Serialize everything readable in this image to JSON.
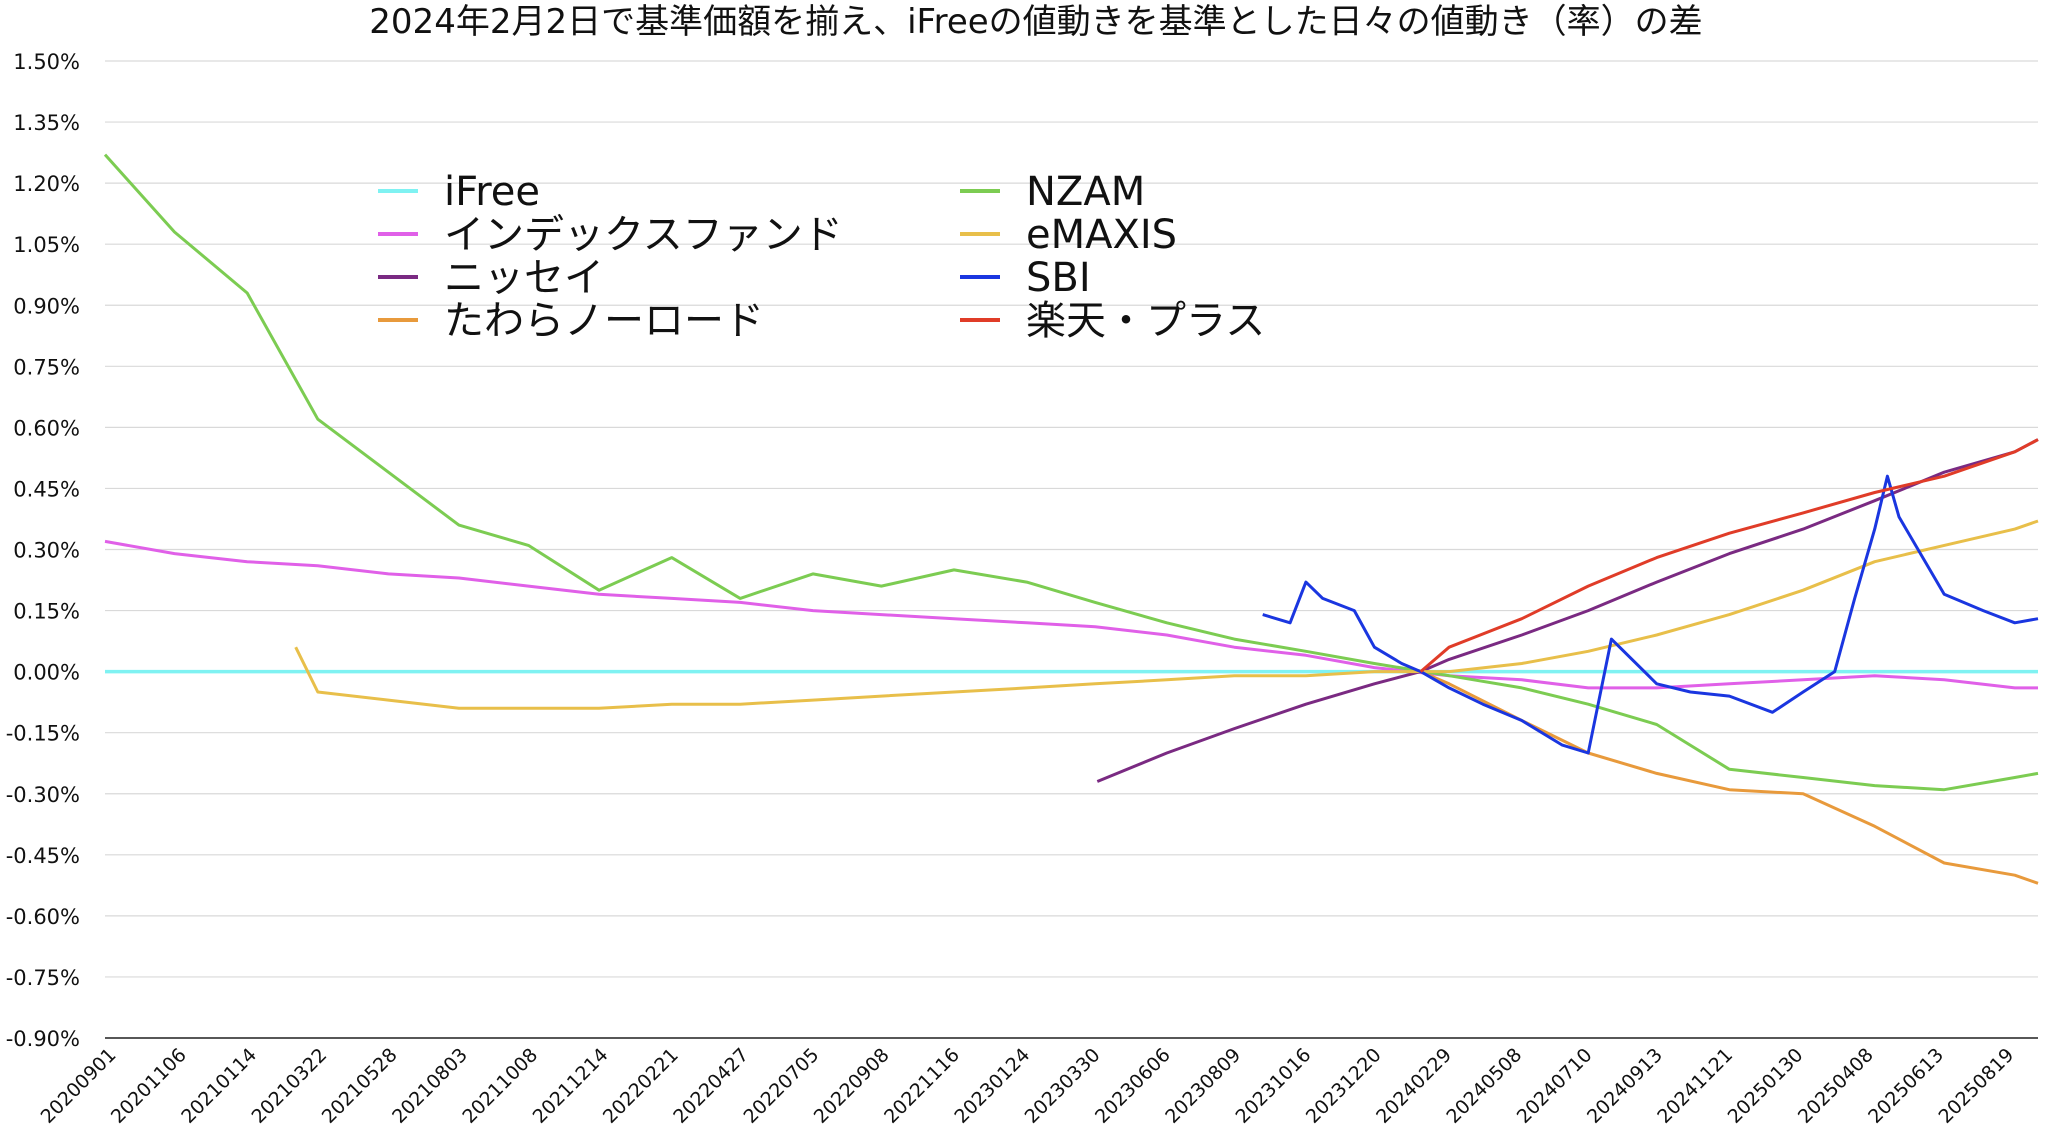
{
  "chart_data": {
    "type": "line",
    "title": "2024年2月2日で基準価額を揃え、iFreeの値動きを基準とした日々の値動き（率）の差",
    "xlabel": "",
    "ylabel": "",
    "ylim": [
      -0.9,
      1.5
    ],
    "grid": true,
    "legend_placement": "top-left",
    "y_ticks": [
      "1.50%",
      "1.35%",
      "1.20%",
      "1.05%",
      "0.90%",
      "0.75%",
      "0.60%",
      "0.45%",
      "0.30%",
      "0.15%",
      "0.00%",
      "-0.15%",
      "-0.30%",
      "-0.45%",
      "-0.60%",
      "-0.75%",
      "-0.90%"
    ],
    "y_tick_values": [
      1.5,
      1.35,
      1.2,
      1.05,
      0.9,
      0.75,
      0.6,
      0.45,
      0.3,
      0.15,
      0.0,
      -0.15,
      -0.3,
      -0.45,
      -0.6,
      -0.75,
      -0.9
    ],
    "x_ticks": [
      "20200901",
      "20201106",
      "20210114",
      "20210322",
      "20210528",
      "20210803",
      "20211008",
      "20211214",
      "20220221",
      "20220427",
      "20220705",
      "20220908",
      "20221116",
      "20230124",
      "20230330",
      "20230606",
      "20230809",
      "20231016",
      "20231220",
      "20240229",
      "20240508",
      "20240710",
      "20240913",
      "20241121",
      "20250130",
      "20250408",
      "20250613",
      "20250819"
    ],
    "x_range": [
      "20200901",
      "20250910"
    ],
    "series": [
      {
        "name": "iFree",
        "color": "#7ff2f2",
        "points": [
          [
            "20200901",
            0.0
          ],
          [
            "20250910",
            0.0
          ]
        ]
      },
      {
        "name": "インデックスファンド",
        "color": "#e060e8",
        "points": [
          [
            "20200901",
            0.32
          ],
          [
            "20201106",
            0.29
          ],
          [
            "20210114",
            0.27
          ],
          [
            "20210322",
            0.26
          ],
          [
            "20210528",
            0.24
          ],
          [
            "20210803",
            0.23
          ],
          [
            "20211008",
            0.21
          ],
          [
            "20211214",
            0.19
          ],
          [
            "20220221",
            0.18
          ],
          [
            "20220427",
            0.17
          ],
          [
            "20220705",
            0.15
          ],
          [
            "20220908",
            0.14
          ],
          [
            "20221116",
            0.13
          ],
          [
            "20230124",
            0.12
          ],
          [
            "20230330",
            0.11
          ],
          [
            "20230606",
            0.09
          ],
          [
            "20230809",
            0.06
          ],
          [
            "20231016",
            0.04
          ],
          [
            "20231220",
            0.01
          ],
          [
            "20240229",
            -0.01
          ],
          [
            "20240508",
            -0.02
          ],
          [
            "20240710",
            -0.04
          ],
          [
            "20240913",
            -0.04
          ],
          [
            "20241121",
            -0.03
          ],
          [
            "20250130",
            -0.02
          ],
          [
            "20250408",
            -0.01
          ],
          [
            "20250613",
            -0.02
          ],
          [
            "20250819",
            -0.04
          ],
          [
            "20250910",
            -0.04
          ]
        ]
      },
      {
        "name": "ニッセイ",
        "color": "#7a2a82",
        "points": [
          [
            "20230401",
            -0.27
          ],
          [
            "20230606",
            -0.2
          ],
          [
            "20230809",
            -0.14
          ],
          [
            "20231016",
            -0.08
          ],
          [
            "20231220",
            -0.03
          ],
          [
            "20240202",
            0.0
          ],
          [
            "20240229",
            0.03
          ],
          [
            "20240508",
            0.09
          ],
          [
            "20240710",
            0.15
          ],
          [
            "20240913",
            0.22
          ],
          [
            "20241121",
            0.29
          ],
          [
            "20250130",
            0.35
          ],
          [
            "20250408",
            0.42
          ],
          [
            "20250613",
            0.49
          ],
          [
            "20250819",
            0.54
          ],
          [
            "20250910",
            0.57
          ]
        ]
      },
      {
        "name": "たわらノーロード",
        "color": "#e89a3c",
        "points": [
          [
            "20240202",
            0.0
          ],
          [
            "20240229",
            -0.03
          ],
          [
            "20240508",
            -0.12
          ],
          [
            "20240710",
            -0.2
          ],
          [
            "20240913",
            -0.25
          ],
          [
            "20241121",
            -0.29
          ],
          [
            "20250130",
            -0.3
          ],
          [
            "20250408",
            -0.38
          ],
          [
            "20250613",
            -0.47
          ],
          [
            "20250819",
            -0.5
          ],
          [
            "20250910",
            -0.52
          ]
        ]
      },
      {
        "name": "NZAM",
        "color": "#7ccc52",
        "points": [
          [
            "20200901",
            1.27
          ],
          [
            "20201106",
            1.08
          ],
          [
            "20210114",
            0.93
          ],
          [
            "20210322",
            0.62
          ],
          [
            "20210528",
            0.49
          ],
          [
            "20210803",
            0.36
          ],
          [
            "20211008",
            0.31
          ],
          [
            "20211214",
            0.2
          ],
          [
            "20220221",
            0.28
          ],
          [
            "20220427",
            0.18
          ],
          [
            "20220705",
            0.24
          ],
          [
            "20220908",
            0.21
          ],
          [
            "20221116",
            0.25
          ],
          [
            "20230124",
            0.22
          ],
          [
            "20230330",
            0.17
          ],
          [
            "20230606",
            0.12
          ],
          [
            "20230809",
            0.08
          ],
          [
            "20231016",
            0.05
          ],
          [
            "20231220",
            0.02
          ],
          [
            "20240229",
            -0.01
          ],
          [
            "20240508",
            -0.04
          ],
          [
            "20240710",
            -0.08
          ],
          [
            "20240913",
            -0.13
          ],
          [
            "20241121",
            -0.24
          ],
          [
            "20250130",
            -0.26
          ],
          [
            "20250408",
            -0.28
          ],
          [
            "20250613",
            -0.29
          ],
          [
            "20250819",
            -0.26
          ],
          [
            "20250910",
            -0.25
          ]
        ]
      },
      {
        "name": "eMAXIS",
        "color": "#e8bf4a",
        "points": [
          [
            "20210301",
            0.06
          ],
          [
            "20210322",
            -0.05
          ],
          [
            "20210528",
            -0.07
          ],
          [
            "20210803",
            -0.09
          ],
          [
            "20211008",
            -0.09
          ],
          [
            "20211214",
            -0.09
          ],
          [
            "20220221",
            -0.08
          ],
          [
            "20220427",
            -0.08
          ],
          [
            "20220705",
            -0.07
          ],
          [
            "20220908",
            -0.06
          ],
          [
            "20221116",
            -0.05
          ],
          [
            "20230124",
            -0.04
          ],
          [
            "20230330",
            -0.03
          ],
          [
            "20230606",
            -0.02
          ],
          [
            "20230809",
            -0.01
          ],
          [
            "20231016",
            -0.01
          ],
          [
            "20231220",
            0.0
          ],
          [
            "20240229",
            0.0
          ],
          [
            "20240508",
            0.02
          ],
          [
            "20240710",
            0.05
          ],
          [
            "20240913",
            0.09
          ],
          [
            "20241121",
            0.14
          ],
          [
            "20250130",
            0.2
          ],
          [
            "20250408",
            0.27
          ],
          [
            "20250613",
            0.31
          ],
          [
            "20250819",
            0.35
          ],
          [
            "20250910",
            0.37
          ]
        ]
      },
      {
        "name": "SBI",
        "color": "#1a36e0",
        "points": [
          [
            "20230905",
            0.14
          ],
          [
            "20231001",
            0.12
          ],
          [
            "20231016",
            0.22
          ],
          [
            "20231101",
            0.18
          ],
          [
            "20231201",
            0.15
          ],
          [
            "20231220",
            0.06
          ],
          [
            "20240115",
            0.02
          ],
          [
            "20240202",
            0.0
          ],
          [
            "20240229",
            -0.04
          ],
          [
            "20240401",
            -0.08
          ],
          [
            "20240508",
            -0.12
          ],
          [
            "20240615",
            -0.18
          ],
          [
            "20240710",
            -0.2
          ],
          [
            "20240801",
            0.08
          ],
          [
            "20240913",
            -0.03
          ],
          [
            "20241015",
            -0.05
          ],
          [
            "20241121",
            -0.06
          ],
          [
            "20250101",
            -0.1
          ],
          [
            "20250130",
            -0.05
          ],
          [
            "20250301",
            0.0
          ],
          [
            "20250320",
            0.18
          ],
          [
            "20250408",
            0.35
          ],
          [
            "20250420",
            0.48
          ],
          [
            "20250501",
            0.38
          ],
          [
            "20250613",
            0.19
          ],
          [
            "20250720",
            0.15
          ],
          [
            "20250819",
            0.12
          ],
          [
            "20250910",
            0.13
          ]
        ]
      },
      {
        "name": "楽天・プラス",
        "color": "#e03c28",
        "points": [
          [
            "20240202",
            0.0
          ],
          [
            "20240229",
            0.06
          ],
          [
            "20240508",
            0.13
          ],
          [
            "20240710",
            0.21
          ],
          [
            "20240913",
            0.28
          ],
          [
            "20241121",
            0.34
          ],
          [
            "20250130",
            0.39
          ],
          [
            "20250408",
            0.44
          ],
          [
            "20250613",
            0.48
          ],
          [
            "20250819",
            0.54
          ],
          [
            "20250910",
            0.57
          ]
        ]
      }
    ]
  }
}
